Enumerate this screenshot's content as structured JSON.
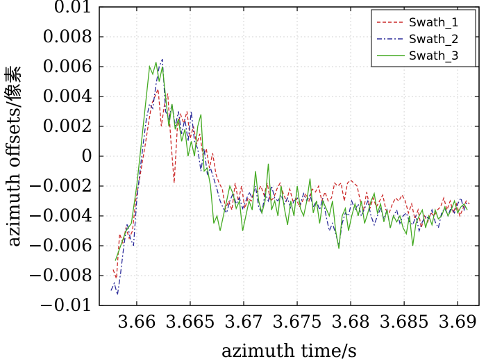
{
  "chart_data": {
    "type": "line",
    "xlabel": "azimuth time/s",
    "ylabel": "azimuth offsets/像素",
    "xlim": [
      3.6565,
      3.692
    ],
    "ylim": [
      -0.01,
      0.01
    ],
    "grid": true,
    "legend_position": "top-right",
    "x_ticks": [
      3.66,
      3.665,
      3.67,
      3.675,
      3.68,
      3.685,
      3.69
    ],
    "x_tick_labels": [
      "3.66",
      "3.665",
      "3.67",
      "3.675",
      "3.68",
      "3.685",
      "3.69"
    ],
    "y_ticks": [
      -0.01,
      -0.008,
      -0.006,
      -0.004,
      -0.002,
      0,
      0.002,
      0.004,
      0.006,
      0.008,
      0.01
    ],
    "y_tick_labels": [
      "−0.01",
      "−0.008",
      "−0.006",
      "−0.004",
      "−0.002",
      "0",
      "0.002",
      "0.004",
      "0.006",
      "0.008",
      "0.01"
    ],
    "series": [
      {
        "name": "Swath_1",
        "color": "#cc2a2a",
        "dash": "dashed",
        "x": [
          3.6578,
          3.6581,
          3.6584,
          3.6587,
          3.659,
          3.6593,
          3.6596,
          3.6599,
          3.6602,
          3.6605,
          3.6608,
          3.6611,
          3.6614,
          3.6617,
          3.662,
          3.6623,
          3.6626,
          3.6629,
          3.6632,
          3.6635,
          3.6638,
          3.6641,
          3.6644,
          3.6647,
          3.665,
          3.6653,
          3.6656,
          3.6659,
          3.6662,
          3.6665,
          3.6668,
          3.6671,
          3.6674,
          3.6677,
          3.668,
          3.6683,
          3.6686,
          3.6689,
          3.6692,
          3.6695,
          3.6698,
          3.6701,
          3.6704,
          3.6707,
          3.671,
          3.6713,
          3.6716,
          3.6719,
          3.6722,
          3.6725,
          3.6728,
          3.6731,
          3.6734,
          3.6737,
          3.674,
          3.6743,
          3.6746,
          3.6749,
          3.6752,
          3.6755,
          3.6758,
          3.6761,
          3.6764,
          3.6767,
          3.677,
          3.6773,
          3.6776,
          3.6779,
          3.6782,
          3.6785,
          3.6788,
          3.6791,
          3.6794,
          3.6797,
          3.68,
          3.6803,
          3.6806,
          3.6809,
          3.6812,
          3.6815,
          3.6818,
          3.6821,
          3.6824,
          3.6827,
          3.683,
          3.6833,
          3.6836,
          3.6839,
          3.6842,
          3.6845,
          3.6848,
          3.6851,
          3.6854,
          3.6857,
          3.686,
          3.6863,
          3.6866,
          3.6869,
          3.6872,
          3.6875,
          3.6878,
          3.6881,
          3.6884,
          3.6887,
          3.689,
          3.6893,
          3.6896,
          3.6899,
          3.6902,
          3.6905,
          3.6908,
          3.6911
        ],
        "y": [
          -0.0076,
          -0.0082,
          -0.0052,
          -0.0058,
          -0.0048,
          -0.0055,
          -0.005,
          -0.003,
          -0.0018,
          -0.0005,
          0.0008,
          0.0022,
          0.0035,
          0.004,
          0.0045,
          0.002,
          0.0035,
          0.0042,
          0.001,
          -0.0018,
          0.002,
          0.0028,
          0.0022,
          0.003,
          0.0012,
          0.002,
          0.0008,
          0.0015,
          0.0,
          0.0005,
          -0.0008,
          0.0002,
          -0.0012,
          -0.0018,
          -0.0022,
          -0.0035,
          -0.003,
          -0.0036,
          -0.0018,
          -0.003,
          -0.002,
          -0.0035,
          -0.0028,
          -0.003,
          -0.0022,
          -0.0024,
          -0.002,
          -0.0026,
          -0.0018,
          -0.003,
          -0.0028,
          -0.0022,
          -0.0018,
          -0.0025,
          -0.003,
          -0.0022,
          -0.003,
          -0.0028,
          -0.0034,
          -0.003,
          -0.0025,
          -0.003,
          -0.0022,
          -0.0024,
          -0.002,
          -0.003,
          -0.0024,
          -0.003,
          -0.0028,
          -0.0018,
          -0.002,
          -0.0018,
          -0.003,
          -0.0018,
          -0.0016,
          -0.0018,
          -0.002,
          -0.003,
          -0.0036,
          -0.0024,
          -0.0035,
          -0.0028,
          -0.0034,
          -0.003,
          -0.0026,
          -0.0036,
          -0.0038,
          -0.0032,
          -0.0028,
          -0.003,
          -0.0026,
          -0.003,
          -0.0038,
          -0.0032,
          -0.0042,
          -0.0036,
          -0.0048,
          -0.004,
          -0.0044,
          -0.0038,
          -0.004,
          -0.0036,
          -0.0034,
          -0.0028,
          -0.0036,
          -0.003,
          -0.0038,
          -0.0032,
          -0.004,
          -0.0035,
          -0.003,
          -0.0032
        ]
      },
      {
        "name": "Swath_2",
        "color": "#2a2a99",
        "dash": "dashdot",
        "x": [
          3.6576,
          3.6579,
          3.6582,
          3.6585,
          3.6588,
          3.6591,
          3.6594,
          3.6597,
          3.66,
          3.6603,
          3.6606,
          3.6609,
          3.6612,
          3.6615,
          3.6618,
          3.6621,
          3.6624,
          3.6627,
          3.663,
          3.6633,
          3.6636,
          3.6639,
          3.6642,
          3.6645,
          3.6648,
          3.6651,
          3.6654,
          3.6657,
          3.666,
          3.6663,
          3.6666,
          3.6669,
          3.6672,
          3.6675,
          3.6678,
          3.6681,
          3.6684,
          3.6687,
          3.669,
          3.6693,
          3.6696,
          3.6699,
          3.6702,
          3.6705,
          3.6708,
          3.6711,
          3.6714,
          3.6717,
          3.672,
          3.6723,
          3.6726,
          3.6729,
          3.6732,
          3.6735,
          3.6738,
          3.6741,
          3.6744,
          3.6747,
          3.675,
          3.6753,
          3.6756,
          3.6759,
          3.6762,
          3.6765,
          3.6768,
          3.6771,
          3.6774,
          3.6777,
          3.678,
          3.6783,
          3.6786,
          3.6789,
          3.6792,
          3.6795,
          3.6798,
          3.6801,
          3.6804,
          3.6807,
          3.681,
          3.6813,
          3.6816,
          3.6819,
          3.6822,
          3.6825,
          3.6828,
          3.6831,
          3.6834,
          3.6837,
          3.684,
          3.6843,
          3.6846,
          3.6849,
          3.6852,
          3.6855,
          3.6858,
          3.6861,
          3.6864,
          3.6867,
          3.687,
          3.6873,
          3.6876,
          3.6879,
          3.6882,
          3.6885,
          3.6888,
          3.6891,
          3.6894,
          3.6897,
          3.69,
          3.6903,
          3.6906,
          3.6909
        ],
        "y": [
          -0.009,
          -0.0085,
          -0.0093,
          -0.0078,
          -0.006,
          -0.0045,
          -0.0055,
          -0.006,
          -0.003,
          -0.001,
          0.0008,
          0.0025,
          0.0035,
          0.0032,
          0.0048,
          0.006,
          0.0065,
          0.003,
          0.0025,
          0.0035,
          0.002,
          0.003,
          0.0015,
          0.0025,
          0.001,
          0.003,
          0.001,
          0.0005,
          -0.001,
          0.0005,
          -0.0012,
          -0.0008,
          -0.0015,
          -0.0022,
          -0.003,
          -0.0035,
          -0.0038,
          -0.003,
          -0.0025,
          -0.0032,
          -0.0028,
          -0.0035,
          -0.003,
          -0.0024,
          -0.0028,
          -0.002,
          -0.0034,
          -0.0038,
          -0.0025,
          -0.003,
          -0.002,
          -0.0028,
          -0.003,
          -0.0026,
          -0.0032,
          -0.0028,
          -0.0035,
          -0.003,
          -0.0028,
          -0.0032,
          -0.0025,
          -0.003,
          -0.0026,
          -0.0034,
          -0.003,
          -0.0036,
          -0.0028,
          -0.004,
          -0.005,
          -0.0045,
          -0.0052,
          -0.006,
          -0.0045,
          -0.0038,
          -0.004,
          -0.003,
          -0.0036,
          -0.0032,
          -0.004,
          -0.0035,
          -0.003,
          -0.004,
          -0.0046,
          -0.004,
          -0.0035,
          -0.0042,
          -0.0036,
          -0.0048,
          -0.004,
          -0.0036,
          -0.0045,
          -0.004,
          -0.0038,
          -0.0044,
          -0.0046,
          -0.004,
          -0.005,
          -0.0044,
          -0.004,
          -0.0042,
          -0.0036,
          -0.0044,
          -0.0048,
          -0.0038,
          -0.0035,
          -0.004,
          -0.0034,
          -0.0038,
          -0.0032,
          -0.0028,
          -0.0036,
          -0.003
        ]
      },
      {
        "name": "Swath_3",
        "color": "#44aa22",
        "dash": "solid",
        "x": [
          3.658,
          3.6585,
          3.659,
          3.6595,
          3.66,
          3.6603,
          3.6606,
          3.6609,
          3.6612,
          3.6615,
          3.6618,
          3.6621,
          3.6624,
          3.6627,
          3.663,
          3.6633,
          3.6636,
          3.6639,
          3.6642,
          3.6645,
          3.6648,
          3.6651,
          3.6654,
          3.6657,
          3.666,
          3.6663,
          3.6666,
          3.6669,
          3.6672,
          3.6675,
          3.6678,
          3.6681,
          3.6684,
          3.6687,
          3.669,
          3.6693,
          3.6696,
          3.6699,
          3.6702,
          3.6705,
          3.6708,
          3.6711,
          3.6714,
          3.6717,
          3.672,
          3.6723,
          3.6726,
          3.6729,
          3.6732,
          3.6735,
          3.6738,
          3.6741,
          3.6744,
          3.6747,
          3.675,
          3.6753,
          3.6756,
          3.6759,
          3.6762,
          3.6765,
          3.6768,
          3.6771,
          3.6774,
          3.6777,
          3.678,
          3.6783,
          3.6786,
          3.6789,
          3.6792,
          3.6795,
          3.6798,
          3.6801,
          3.6804,
          3.6807,
          3.681,
          3.6813,
          3.6816,
          3.6819,
          3.6822,
          3.6825,
          3.6828,
          3.6831,
          3.6834,
          3.6837,
          3.684,
          3.6843,
          3.6846,
          3.6849,
          3.6852,
          3.6855,
          3.6858,
          3.6861,
          3.6864,
          3.6867,
          3.687,
          3.6873,
          3.6876,
          3.6879,
          3.6882,
          3.6885,
          3.6888,
          3.6891,
          3.6894,
          3.6897,
          3.69,
          3.6903,
          3.6906,
          3.6909
        ],
        "y": [
          -0.007,
          -0.006,
          -0.005,
          -0.0045,
          -0.002,
          0.0,
          0.002,
          0.004,
          0.006,
          0.0055,
          0.0063,
          0.005,
          0.006,
          0.004,
          0.002,
          0.0035,
          0.0018,
          0.0025,
          0.001,
          0.0018,
          0.0,
          0.001,
          0.0,
          0.002,
          0.0028,
          -0.001,
          -0.0008,
          -0.002,
          -0.0045,
          -0.004,
          -0.005,
          -0.004,
          -0.003,
          -0.002,
          -0.0025,
          -0.0035,
          -0.003,
          -0.005,
          -0.004,
          -0.003,
          -0.0036,
          -0.001,
          -0.003,
          -0.0038,
          -0.003,
          -0.0005,
          -0.0036,
          -0.003,
          -0.004,
          -0.002,
          -0.0035,
          -0.0046,
          -0.003,
          -0.004,
          -0.002,
          -0.0035,
          -0.004,
          -0.003,
          -0.0015,
          -0.0038,
          -0.003,
          -0.0045,
          -0.003,
          -0.0035,
          -0.004,
          -0.003,
          -0.005,
          -0.0062,
          -0.004,
          -0.0035,
          -0.005,
          -0.004,
          -0.0032,
          -0.004,
          -0.003,
          -0.0045,
          -0.0038,
          -0.003,
          -0.0025,
          -0.0038,
          -0.0032,
          -0.0044,
          -0.0036,
          -0.0048,
          -0.004,
          -0.0044,
          -0.004,
          -0.0048,
          -0.0052,
          -0.004,
          -0.006,
          -0.0045,
          -0.004,
          -0.0036,
          -0.0048,
          -0.004,
          -0.0046,
          -0.0036,
          -0.0042,
          -0.004,
          -0.0034,
          -0.004,
          -0.0036,
          -0.003,
          -0.0038,
          -0.0034,
          -0.0032,
          -0.0036
        ]
      }
    ]
  }
}
